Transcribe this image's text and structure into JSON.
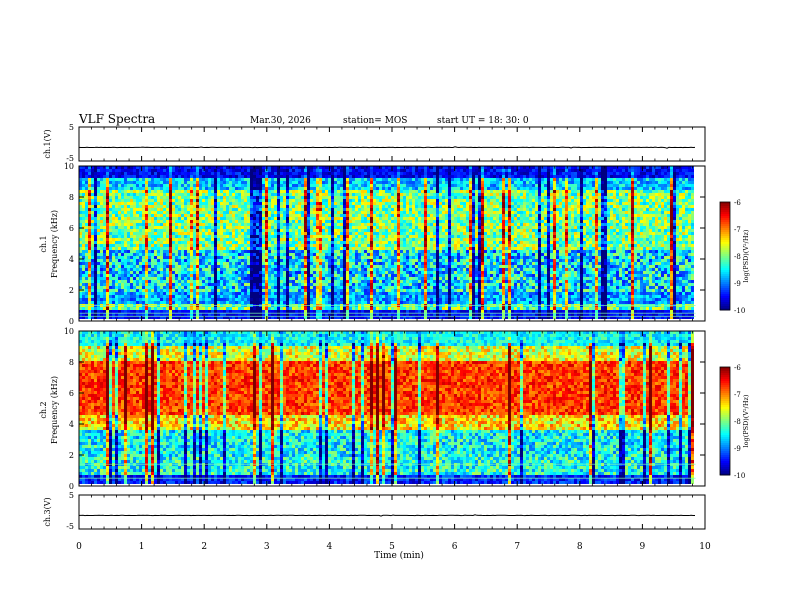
{
  "header": {
    "title": "VLF Spectra",
    "date": "Mar.30, 2026",
    "station": "station= MOS",
    "start_ut": "start UT =  18: 30: 0"
  },
  "chart_data": [
    {
      "id": "ch1-waveform",
      "type": "line",
      "ylabel": "ch.1(V)",
      "ylim": [
        -5,
        5
      ],
      "yticks": [
        "5",
        "-5"
      ],
      "xlim": [
        0,
        9.85
      ],
      "baseline_value": -1.0
    },
    {
      "id": "ch1-spectrogram",
      "type": "heatmap",
      "ylabel_line1": "ch.1",
      "ylabel_line2": "Frequency (kHz)",
      "ylim": [
        0,
        10
      ],
      "yticks": [
        "0",
        "2",
        "4",
        "6",
        "8",
        "10"
      ],
      "xlim": [
        0,
        9.85
      ],
      "colorbar": {
        "label": "log(PSD)(V²/Hz)",
        "ticks": [
          "-6",
          "-7",
          "-8",
          "-9",
          "-10"
        ],
        "range": [
          -10,
          -6
        ]
      },
      "profile": "broadband-green"
    },
    {
      "id": "ch2-spectrogram",
      "type": "heatmap",
      "ylabel_line1": "ch.2",
      "ylabel_line2": "Frequency (kHz)",
      "ylim": [
        0,
        10
      ],
      "yticks": [
        "0",
        "2",
        "4",
        "6",
        "8",
        "10"
      ],
      "xlim": [
        0,
        9.85
      ],
      "colorbar": {
        "label": "log(PSD)(V²/Hz)",
        "ticks": [
          "-6",
          "-7",
          "-8",
          "-9",
          "-10"
        ],
        "range": [
          -10,
          -6
        ]
      },
      "profile": "mid-band-red"
    },
    {
      "id": "ch3-waveform",
      "type": "line",
      "ylabel": "ch.3(V)",
      "ylim": [
        -5,
        5
      ],
      "yticks": [
        "5",
        "-5"
      ],
      "xlim": [
        0,
        9.85
      ],
      "baseline_value": -1.0
    }
  ],
  "x_axis": {
    "label": "Time (min)",
    "ticks": [
      "0",
      "1",
      "2",
      "3",
      "4",
      "5",
      "6",
      "7",
      "8",
      "9",
      "10"
    ],
    "range": [
      0,
      10
    ]
  }
}
